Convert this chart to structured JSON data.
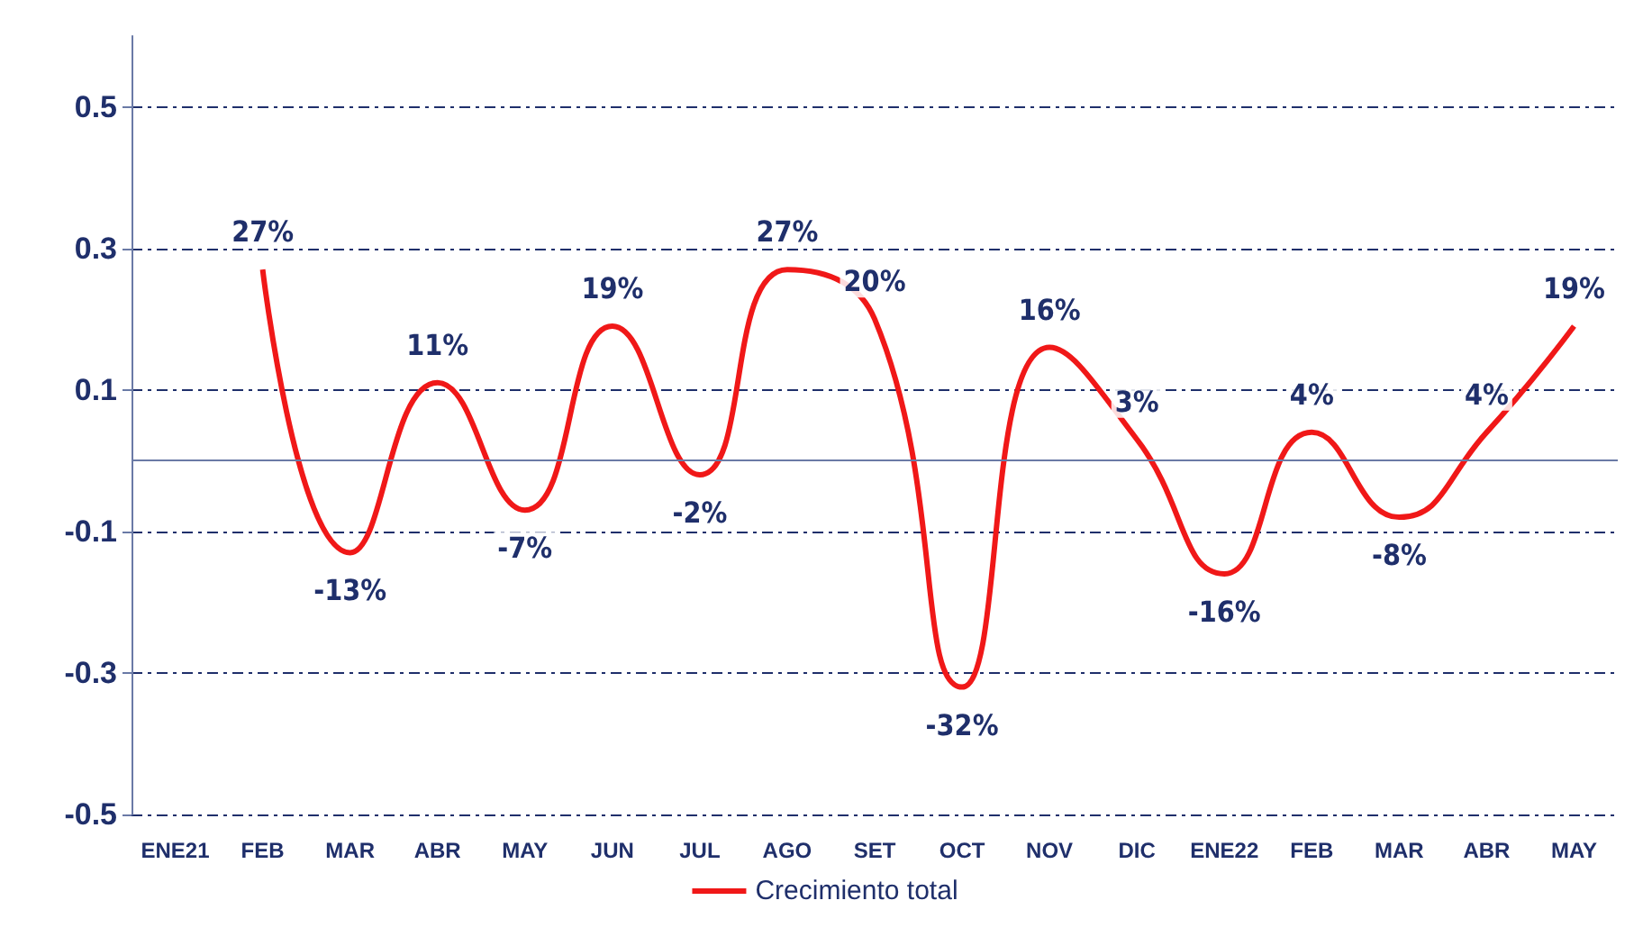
{
  "chart_data": {
    "type": "line",
    "categories": [
      "ENE21",
      "FEB",
      "MAR",
      "ABR",
      "MAY",
      "JUN",
      "JUL",
      "AGO",
      "SET",
      "OCT",
      "NOV",
      "DIC",
      "ENE22",
      "FEB",
      "MAR",
      "ABR",
      "MAY"
    ],
    "series": [
      {
        "name": "Crecimiento total",
        "color": "#f01818",
        "values": [
          null,
          0.27,
          -0.13,
          0.11,
          -0.07,
          0.19,
          -0.02,
          0.27,
          0.2,
          -0.32,
          0.16,
          0.03,
          -0.16,
          0.04,
          -0.08,
          0.04,
          0.19
        ],
        "value_labels": [
          null,
          "27%",
          "-13%",
          "11%",
          "-7%",
          "19%",
          "-2%",
          "27%",
          "20%",
          "-32%",
          "16%",
          "3%",
          "-16%",
          "4%",
          "-8%",
          "4%",
          "19%"
        ]
      }
    ],
    "ylim": [
      -0.5,
      0.6
    ],
    "yticks": [
      -0.5,
      -0.3,
      -0.1,
      0.1,
      0.3,
      0.5
    ],
    "ref_lines": [
      {
        "axis": "y",
        "value": 0,
        "color": "#6a7aa6"
      }
    ],
    "grid": "y",
    "legend": "bottom",
    "marker": "none",
    "line_style": "solid"
  }
}
